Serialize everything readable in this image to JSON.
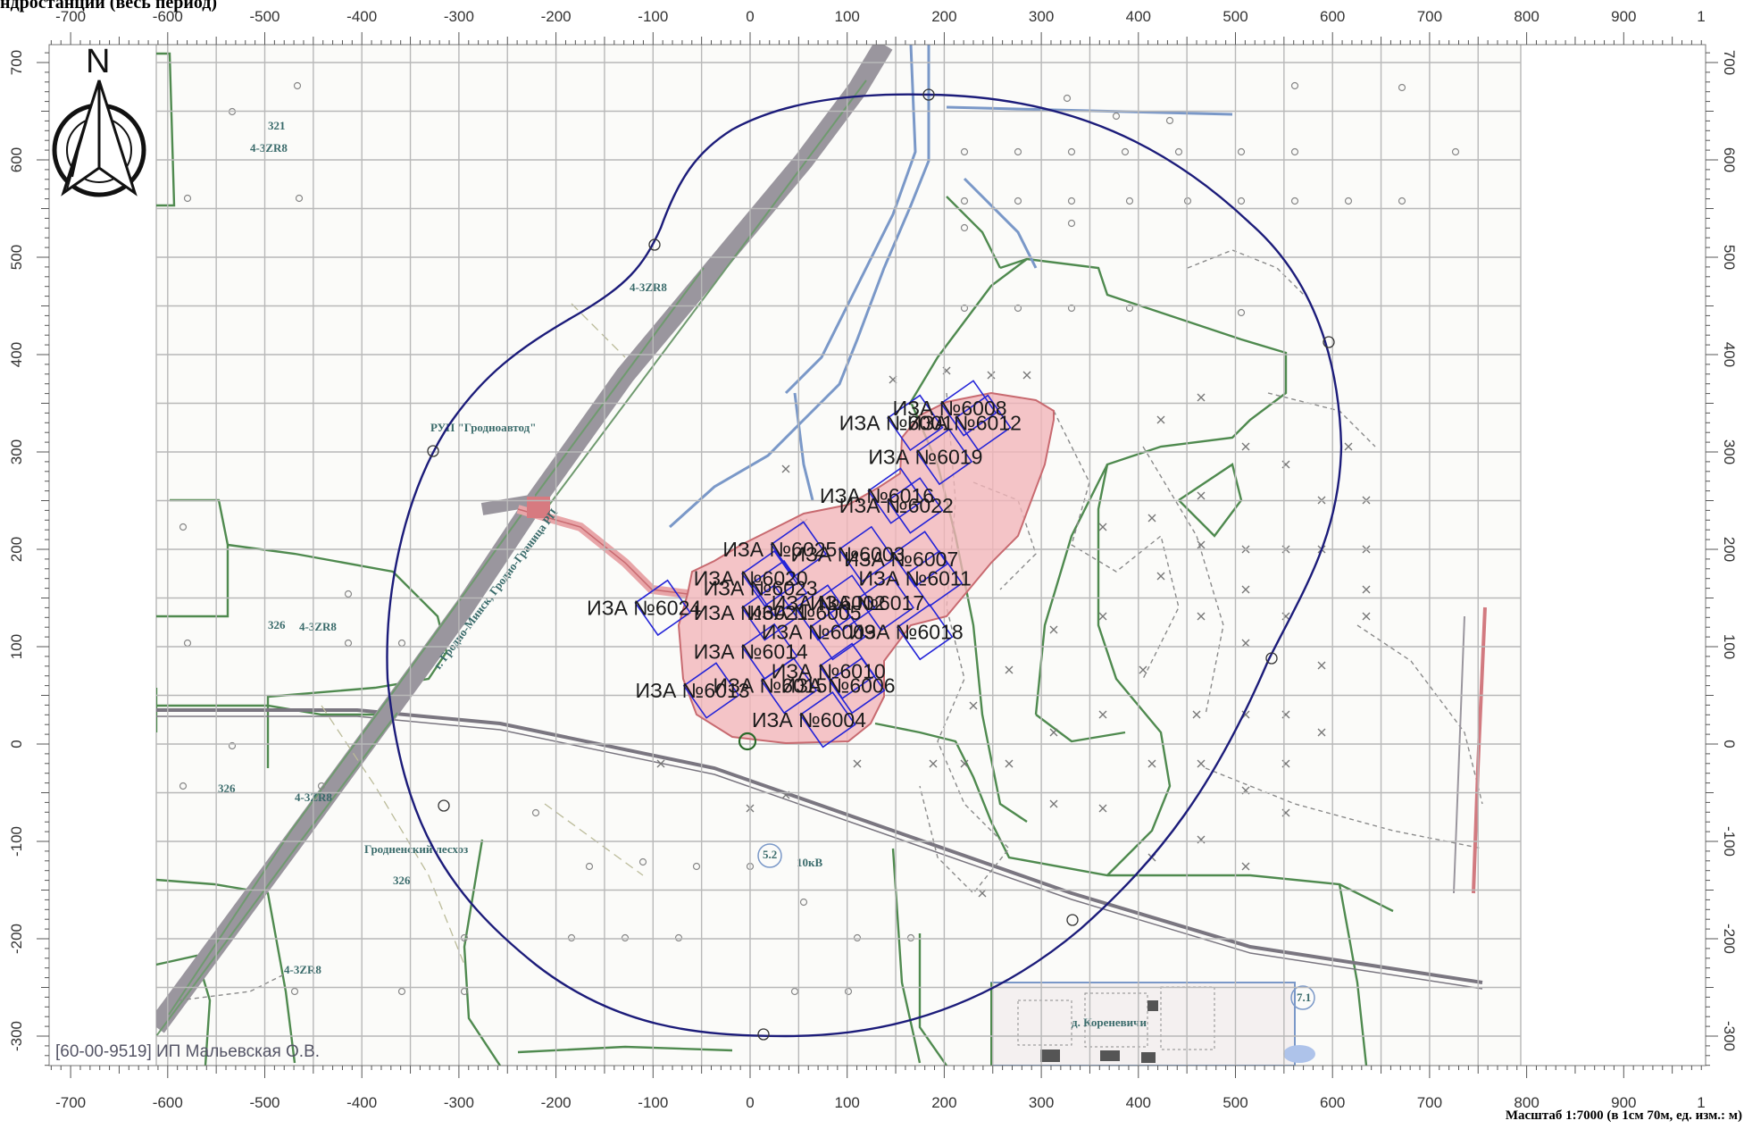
{
  "title": "ндростанции (весь период)",
  "scale_text": "Масштаб 1:7000 (в 1см 70м, ед. изм.: м)",
  "credit": "[60-00-9519] ИП Мальевская О.В.",
  "north_label": "N",
  "x_ticks": [
    "-700",
    "-600",
    "-500",
    "-400",
    "-300",
    "-200",
    "-100",
    "0",
    "100",
    "200",
    "300",
    "400",
    "500",
    "600",
    "700",
    "800",
    "900",
    "1"
  ],
  "y_ticks": [
    "700",
    "600",
    "500",
    "400",
    "300",
    "200",
    "100",
    "0",
    "-100",
    "-200",
    "-300"
  ],
  "map_labels": {
    "rup": "РУП \"Гродноавтод\"",
    "leshoz": "Гродненский лесхоз",
    "village": "д. Кореневичи",
    "road": "г. Гродно-Минск, Гродно-Граница РП",
    "kv": "10кВ",
    "lines": [
      "4-3ZR8",
      "4-3ZR8",
      "4-3ZR8",
      "4-3ZR8",
      "4-3ZR8"
    ],
    "plots": [
      "321",
      "326",
      "326",
      "326",
      "5.2",
      "7.1"
    ]
  },
  "sources": [
    {
      "label": "ИЗА №6008",
      "x": 225,
      "y": 345
    },
    {
      "label": "ИЗА №6001",
      "x": 170,
      "y": 330
    },
    {
      "label": "ИЗА №6012",
      "x": 240,
      "y": 330
    },
    {
      "label": "ИЗА №6019",
      "x": 200,
      "y": 295
    },
    {
      "label": "ИЗА №6016",
      "x": 150,
      "y": 255
    },
    {
      "label": "ИЗА №6022",
      "x": 170,
      "y": 245
    },
    {
      "label": "ИЗА №6025",
      "x": 50,
      "y": 200
    },
    {
      "label": "ИЗА №6003",
      "x": 120,
      "y": 195
    },
    {
      "label": "ИЗА №6007",
      "x": 175,
      "y": 190
    },
    {
      "label": "ИЗА №6011",
      "x": 190,
      "y": 170
    },
    {
      "label": "ИЗА №6020",
      "x": 20,
      "y": 170
    },
    {
      "label": "ИЗА №6023",
      "x": 30,
      "y": 160
    },
    {
      "label": "ИЗА №6017",
      "x": 140,
      "y": 145
    },
    {
      "label": "ИЗА №6024",
      "x": -90,
      "y": 140
    },
    {
      "label": "ИЗА №6021",
      "x": 20,
      "y": 135
    },
    {
      "label": "ИЗА №6005",
      "x": 75,
      "y": 135
    },
    {
      "label": "ИЗА №6002",
      "x": 100,
      "y": 145
    },
    {
      "label": "ИЗА №6009",
      "x": 90,
      "y": 115
    },
    {
      "label": "ИЗА №6018",
      "x": 180,
      "y": 115
    },
    {
      "label": "ИЗА №6014",
      "x": 20,
      "y": 95
    },
    {
      "label": "ИЗА №6010",
      "x": 100,
      "y": 75
    },
    {
      "label": "ИЗА №6006",
      "x": 110,
      "y": 60
    },
    {
      "label": "ИЗА №6015",
      "x": 40,
      "y": 60
    },
    {
      "label": "ИЗА №6013",
      "x": -40,
      "y": 55
    },
    {
      "label": "ИЗА №6004",
      "x": 80,
      "y": 25
    }
  ],
  "colors": {
    "grid": "#b8b8b8",
    "zone": "#1c1c7a",
    "site_fill": "#f2b5b8",
    "site_stroke": "#c86a70",
    "source_box": "#2424d8",
    "forest": "#4f8a4f",
    "road": "#9a969e",
    "water": "#7a98c8"
  }
}
